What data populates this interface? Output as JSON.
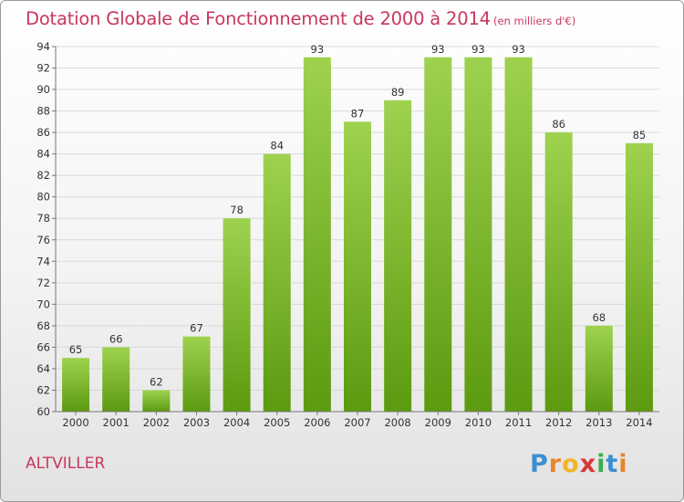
{
  "header": {
    "title": "Dotation Globale de Fonctionnement de 2000 à 2014",
    "subtitle": "(en milliers d'€)"
  },
  "footer": {
    "commune": "ALTVILLER",
    "logo_letters": [
      "P",
      "r",
      "o",
      "x",
      "i",
      "t",
      "i"
    ]
  },
  "colors": {
    "title": "#c8375e",
    "bar_top": "#9ed24f",
    "bar_bottom": "#5c9a10",
    "grid": "#d9d9d9",
    "text": "#333333"
  },
  "chart_data": {
    "type": "bar",
    "categories": [
      "2000",
      "2001",
      "2002",
      "2003",
      "2004",
      "2005",
      "2006",
      "2007",
      "2008",
      "2009",
      "2010",
      "2011",
      "2012",
      "2013",
      "2014"
    ],
    "values": [
      65,
      66,
      62,
      67,
      78,
      84,
      93,
      87,
      89,
      93,
      93,
      93,
      86,
      68,
      85
    ],
    "ylim": [
      60,
      94
    ],
    "yticks": [
      60,
      62,
      64,
      66,
      68,
      70,
      72,
      74,
      76,
      78,
      80,
      82,
      84,
      86,
      88,
      90,
      92,
      94
    ],
    "grid": true,
    "legend": "none"
  }
}
